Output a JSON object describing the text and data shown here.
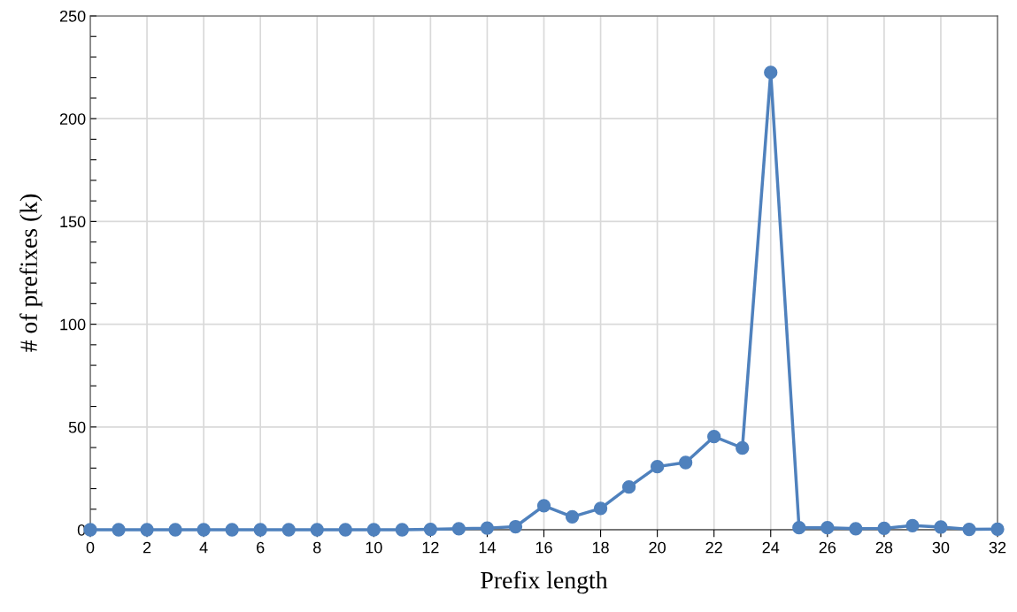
{
  "chart_data": {
    "type": "line",
    "xlabel": "Prefix length",
    "ylabel": "# of prefixes (k)",
    "x": [
      0,
      1,
      2,
      3,
      4,
      5,
      6,
      7,
      8,
      9,
      10,
      11,
      12,
      13,
      14,
      15,
      16,
      17,
      18,
      19,
      20,
      21,
      22,
      23,
      24,
      25,
      26,
      27,
      28,
      29,
      30,
      31,
      32
    ],
    "series": [
      {
        "color": "#4f81bd",
        "values": [
          0,
          0,
          0,
          0,
          0,
          0,
          0,
          0,
          0,
          0,
          0,
          0,
          0.2,
          0.5,
          0.8,
          1.5,
          11.7,
          6.3,
          10.4,
          20.8,
          30.7,
          32.7,
          45.3,
          39.8,
          222.5,
          1,
          1,
          0.5,
          0.7,
          2,
          1.3,
          0.2,
          0.3
        ]
      }
    ],
    "xlim": [
      0,
      32
    ],
    "xticks": [
      0,
      2,
      4,
      6,
      8,
      10,
      12,
      14,
      16,
      18,
      20,
      22,
      24,
      26,
      28,
      30,
      32
    ],
    "ylim": [
      0,
      250
    ],
    "yticks": [
      0,
      {
        "value": 10,
        "label": null
      },
      {
        "value": 20,
        "label": null
      },
      {
        "value": 30,
        "label": null
      },
      {
        "value": 40,
        "label": null
      },
      50,
      {
        "value": 60,
        "label": null
      },
      {
        "value": 70,
        "label": null
      },
      {
        "value": 80,
        "label": null
      },
      {
        "value": 90,
        "label": null
      },
      100,
      {
        "value": 110,
        "label": null
      },
      {
        "value": 120,
        "label": null
      },
      {
        "value": 130,
        "label": null
      },
      {
        "value": 140,
        "label": null
      },
      150,
      {
        "value": 160,
        "label": null
      },
      {
        "value": 170,
        "label": null
      },
      {
        "value": 180,
        "label": null
      },
      {
        "value": 190,
        "label": null
      },
      200,
      {
        "value": 210,
        "label": null
      },
      {
        "value": 220,
        "label": null
      },
      {
        "value": 230,
        "label": null
      },
      {
        "value": 240,
        "label": null
      },
      250
    ],
    "grid": true,
    "marker": "circle",
    "line_style": "solid"
  }
}
